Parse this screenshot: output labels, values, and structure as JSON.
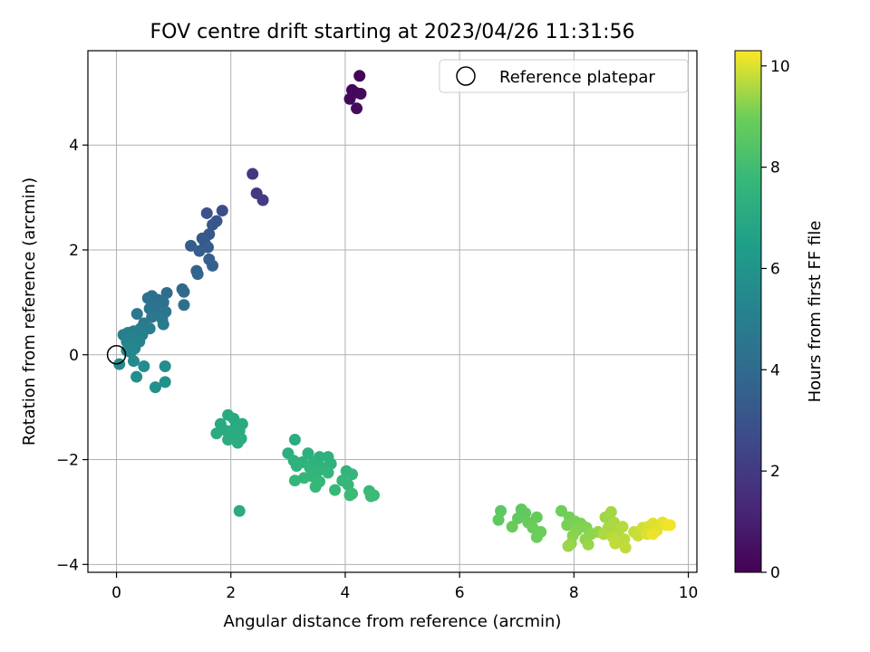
{
  "chart_data": {
    "type": "scatter",
    "title": "FOV centre drift starting at 2023/04/26 11:31:56",
    "xlabel": "Angular distance from reference (arcmin)",
    "ylabel": "Rotation from reference (arcmin)",
    "xlim": [
      -0.5,
      10.15
    ],
    "ylim": [
      -4.15,
      5.8
    ],
    "xticks": [
      0,
      2,
      4,
      6,
      8,
      10
    ],
    "xtick_labels": [
      "0",
      "2",
      "4",
      "6",
      "8",
      "10"
    ],
    "yticks": [
      -4,
      -2,
      0,
      2,
      4
    ],
    "ytick_labels": [
      "−4",
      "−2",
      "0",
      "2",
      "4"
    ],
    "grid": true,
    "legend": {
      "placement": "top-right",
      "entries": [
        {
          "label": "Reference platepar",
          "marker": "open-circle",
          "x": 0,
          "y": 0
        }
      ]
    },
    "colorbar": {
      "label": "Hours from first FF file",
      "range": [
        0,
        10.3
      ],
      "ticks": [
        0,
        2,
        4,
        6,
        8,
        10
      ],
      "tick_labels": [
        "0",
        "2",
        "4",
        "6",
        "8",
        "10"
      ],
      "colormap": "viridis"
    },
    "points": [
      {
        "x": 4.25,
        "y": 5.32,
        "c": 0.1
      },
      {
        "x": 4.12,
        "y": 5.05,
        "c": 0.15
      },
      {
        "x": 4.18,
        "y": 5.0,
        "c": 0.2
      },
      {
        "x": 4.08,
        "y": 4.88,
        "c": 0.25
      },
      {
        "x": 4.27,
        "y": 4.98,
        "c": 0.3
      },
      {
        "x": 4.2,
        "y": 4.7,
        "c": 0.35
      },
      {
        "x": 2.38,
        "y": 3.45,
        "c": 1.9
      },
      {
        "x": 2.45,
        "y": 3.08,
        "c": 2.0
      },
      {
        "x": 2.56,
        "y": 2.95,
        "c": 2.1
      },
      {
        "x": 1.85,
        "y": 2.75,
        "c": 2.8
      },
      {
        "x": 1.58,
        "y": 2.7,
        "c": 3.0
      },
      {
        "x": 1.75,
        "y": 2.55,
        "c": 3.1
      },
      {
        "x": 1.68,
        "y": 2.48,
        "c": 3.1
      },
      {
        "x": 1.62,
        "y": 2.3,
        "c": 3.2
      },
      {
        "x": 1.5,
        "y": 2.22,
        "c": 3.3
      },
      {
        "x": 1.55,
        "y": 2.12,
        "c": 3.3
      },
      {
        "x": 1.3,
        "y": 2.08,
        "c": 3.4
      },
      {
        "x": 1.6,
        "y": 2.05,
        "c": 3.4
      },
      {
        "x": 1.45,
        "y": 1.98,
        "c": 3.5
      },
      {
        "x": 1.62,
        "y": 1.82,
        "c": 3.5
      },
      {
        "x": 1.68,
        "y": 1.7,
        "c": 3.6
      },
      {
        "x": 1.4,
        "y": 1.6,
        "c": 3.6
      },
      {
        "x": 1.42,
        "y": 1.54,
        "c": 3.7
      },
      {
        "x": 1.15,
        "y": 1.25,
        "c": 3.9
      },
      {
        "x": 1.18,
        "y": 1.2,
        "c": 4.0
      },
      {
        "x": 0.88,
        "y": 1.18,
        "c": 4.1
      },
      {
        "x": 0.62,
        "y": 1.12,
        "c": 4.2
      },
      {
        "x": 0.72,
        "y": 1.05,
        "c": 4.2
      },
      {
        "x": 0.55,
        "y": 1.08,
        "c": 4.3
      },
      {
        "x": 0.82,
        "y": 1.0,
        "c": 4.3
      },
      {
        "x": 1.18,
        "y": 0.95,
        "c": 4.2
      },
      {
        "x": 0.68,
        "y": 0.92,
        "c": 4.4
      },
      {
        "x": 0.58,
        "y": 0.88,
        "c": 4.4
      },
      {
        "x": 0.86,
        "y": 0.82,
        "c": 4.5
      },
      {
        "x": 0.72,
        "y": 0.78,
        "c": 4.5
      },
      {
        "x": 0.36,
        "y": 0.78,
        "c": 4.6
      },
      {
        "x": 0.62,
        "y": 0.72,
        "c": 4.6
      },
      {
        "x": 0.8,
        "y": 0.68,
        "c": 4.7
      },
      {
        "x": 0.48,
        "y": 0.6,
        "c": 4.7
      },
      {
        "x": 0.82,
        "y": 0.58,
        "c": 4.8
      },
      {
        "x": 0.42,
        "y": 0.5,
        "c": 4.8
      },
      {
        "x": 0.58,
        "y": 0.5,
        "c": 4.9
      },
      {
        "x": 0.3,
        "y": 0.45,
        "c": 4.9
      },
      {
        "x": 0.2,
        "y": 0.42,
        "c": 5.0
      },
      {
        "x": 0.12,
        "y": 0.38,
        "c": 5.0
      },
      {
        "x": 0.45,
        "y": 0.38,
        "c": 5.0
      },
      {
        "x": 0.25,
        "y": 0.32,
        "c": 5.1
      },
      {
        "x": 0.35,
        "y": 0.3,
        "c": 5.1
      },
      {
        "x": 0.18,
        "y": 0.25,
        "c": 5.2
      },
      {
        "x": 0.4,
        "y": 0.25,
        "c": 5.2
      },
      {
        "x": 0.28,
        "y": 0.2,
        "c": 5.3
      },
      {
        "x": 0.22,
        "y": 0.15,
        "c": 5.3
      },
      {
        "x": 0.32,
        "y": 0.12,
        "c": 5.3
      },
      {
        "x": 0.18,
        "y": 0.08,
        "c": 5.4
      },
      {
        "x": 0.25,
        "y": 0.05,
        "c": 5.4
      },
      {
        "x": 0.3,
        "y": -0.12,
        "c": 5.5
      },
      {
        "x": 0.05,
        "y": -0.18,
        "c": 5.5
      },
      {
        "x": 0.48,
        "y": -0.22,
        "c": 5.6
      },
      {
        "x": 0.85,
        "y": -0.22,
        "c": 5.7
      },
      {
        "x": 0.35,
        "y": -0.42,
        "c": 5.7
      },
      {
        "x": 0.85,
        "y": -0.52,
        "c": 5.8
      },
      {
        "x": 0.68,
        "y": -0.62,
        "c": 5.8
      },
      {
        "x": 1.95,
        "y": -1.15,
        "c": 7.0
      },
      {
        "x": 2.05,
        "y": -1.22,
        "c": 7.0
      },
      {
        "x": 1.82,
        "y": -1.32,
        "c": 7.0
      },
      {
        "x": 2.2,
        "y": -1.32,
        "c": 7.05
      },
      {
        "x": 2.08,
        "y": -1.38,
        "c": 7.05
      },
      {
        "x": 1.92,
        "y": -1.45,
        "c": 7.1
      },
      {
        "x": 2.15,
        "y": -1.45,
        "c": 7.1
      },
      {
        "x": 1.75,
        "y": -1.5,
        "c": 7.1
      },
      {
        "x": 2.02,
        "y": -1.55,
        "c": 7.15
      },
      {
        "x": 1.95,
        "y": -1.62,
        "c": 7.15
      },
      {
        "x": 2.18,
        "y": -1.6,
        "c": 7.2
      },
      {
        "x": 2.12,
        "y": -1.68,
        "c": 7.2
      },
      {
        "x": 2.15,
        "y": -2.98,
        "c": 7.1
      },
      {
        "x": 3.12,
        "y": -1.62,
        "c": 7.2
      },
      {
        "x": 3.0,
        "y": -1.88,
        "c": 7.25
      },
      {
        "x": 3.35,
        "y": -1.88,
        "c": 7.3
      },
      {
        "x": 3.55,
        "y": -1.95,
        "c": 7.3
      },
      {
        "x": 3.7,
        "y": -1.95,
        "c": 7.35
      },
      {
        "x": 3.1,
        "y": -2.02,
        "c": 7.35
      },
      {
        "x": 3.25,
        "y": -2.05,
        "c": 7.4
      },
      {
        "x": 3.45,
        "y": -2.05,
        "c": 7.4
      },
      {
        "x": 3.75,
        "y": -2.08,
        "c": 7.45
      },
      {
        "x": 3.15,
        "y": -2.12,
        "c": 7.45
      },
      {
        "x": 3.38,
        "y": -2.15,
        "c": 7.5
      },
      {
        "x": 3.6,
        "y": -2.15,
        "c": 7.5
      },
      {
        "x": 3.52,
        "y": -2.22,
        "c": 7.55
      },
      {
        "x": 4.02,
        "y": -2.22,
        "c": 7.55
      },
      {
        "x": 3.7,
        "y": -2.25,
        "c": 7.6
      },
      {
        "x": 4.12,
        "y": -2.28,
        "c": 7.6
      },
      {
        "x": 3.42,
        "y": -2.32,
        "c": 7.6
      },
      {
        "x": 3.28,
        "y": -2.35,
        "c": 7.65
      },
      {
        "x": 3.12,
        "y": -2.4,
        "c": 7.65
      },
      {
        "x": 3.95,
        "y": -2.4,
        "c": 7.7
      },
      {
        "x": 3.55,
        "y": -2.42,
        "c": 7.7
      },
      {
        "x": 4.05,
        "y": -2.48,
        "c": 7.75
      },
      {
        "x": 3.48,
        "y": -2.52,
        "c": 7.75
      },
      {
        "x": 3.82,
        "y": -2.58,
        "c": 7.8
      },
      {
        "x": 4.42,
        "y": -2.6,
        "c": 7.8
      },
      {
        "x": 4.12,
        "y": -2.65,
        "c": 7.85
      },
      {
        "x": 4.5,
        "y": -2.68,
        "c": 7.85
      },
      {
        "x": 4.45,
        "y": -2.7,
        "c": 7.9
      },
      {
        "x": 4.08,
        "y": -2.68,
        "c": 7.9
      },
      {
        "x": 6.72,
        "y": -2.98,
        "c": 8.6
      },
      {
        "x": 6.68,
        "y": -3.15,
        "c": 8.65
      },
      {
        "x": 7.08,
        "y": -2.95,
        "c": 8.7
      },
      {
        "x": 7.15,
        "y": -3.02,
        "c": 8.75
      },
      {
        "x": 7.02,
        "y": -3.12,
        "c": 8.75
      },
      {
        "x": 7.35,
        "y": -3.1,
        "c": 8.8
      },
      {
        "x": 7.2,
        "y": -3.2,
        "c": 8.85
      },
      {
        "x": 6.92,
        "y": -3.28,
        "c": 8.85
      },
      {
        "x": 7.28,
        "y": -3.3,
        "c": 8.9
      },
      {
        "x": 7.42,
        "y": -3.38,
        "c": 8.95
      },
      {
        "x": 7.35,
        "y": -3.48,
        "c": 8.95
      },
      {
        "x": 7.78,
        "y": -2.98,
        "c": 9.0
      },
      {
        "x": 7.92,
        "y": -3.1,
        "c": 9.05
      },
      {
        "x": 8.02,
        "y": -3.18,
        "c": 9.1
      },
      {
        "x": 7.88,
        "y": -3.25,
        "c": 9.1
      },
      {
        "x": 8.12,
        "y": -3.22,
        "c": 9.15
      },
      {
        "x": 8.05,
        "y": -3.35,
        "c": 9.2
      },
      {
        "x": 8.22,
        "y": -3.3,
        "c": 9.2
      },
      {
        "x": 7.98,
        "y": -3.45,
        "c": 9.25
      },
      {
        "x": 8.3,
        "y": -3.42,
        "c": 9.3
      },
      {
        "x": 8.2,
        "y": -3.52,
        "c": 9.3
      },
      {
        "x": 8.42,
        "y": -3.38,
        "c": 9.35
      },
      {
        "x": 7.95,
        "y": -3.6,
        "c": 9.35
      },
      {
        "x": 8.25,
        "y": -3.62,
        "c": 9.4
      },
      {
        "x": 7.9,
        "y": -3.65,
        "c": 9.4
      },
      {
        "x": 8.55,
        "y": -3.1,
        "c": 9.45
      },
      {
        "x": 8.65,
        "y": -3.0,
        "c": 9.5
      },
      {
        "x": 8.7,
        "y": -3.2,
        "c": 9.55
      },
      {
        "x": 8.6,
        "y": -3.3,
        "c": 9.55
      },
      {
        "x": 8.78,
        "y": -3.35,
        "c": 9.6
      },
      {
        "x": 8.52,
        "y": -3.42,
        "c": 9.6
      },
      {
        "x": 8.85,
        "y": -3.28,
        "c": 9.65
      },
      {
        "x": 8.68,
        "y": -3.48,
        "c": 9.7
      },
      {
        "x": 8.88,
        "y": -3.52,
        "c": 9.7
      },
      {
        "x": 8.72,
        "y": -3.6,
        "c": 9.75
      },
      {
        "x": 8.9,
        "y": -3.68,
        "c": 9.75
      },
      {
        "x": 9.05,
        "y": -3.38,
        "c": 9.8
      },
      {
        "x": 9.12,
        "y": -3.45,
        "c": 9.85
      },
      {
        "x": 9.2,
        "y": -3.3,
        "c": 9.9
      },
      {
        "x": 9.3,
        "y": -3.28,
        "c": 9.95
      },
      {
        "x": 9.38,
        "y": -3.22,
        "c": 10.0
      },
      {
        "x": 9.28,
        "y": -3.42,
        "c": 10.0
      },
      {
        "x": 9.45,
        "y": -3.35,
        "c": 10.05
      },
      {
        "x": 9.55,
        "y": -3.2,
        "c": 10.1
      },
      {
        "x": 9.62,
        "y": -3.25,
        "c": 10.15
      },
      {
        "x": 9.38,
        "y": -3.42,
        "c": 10.15
      },
      {
        "x": 9.68,
        "y": -3.25,
        "c": 10.2
      }
    ]
  }
}
